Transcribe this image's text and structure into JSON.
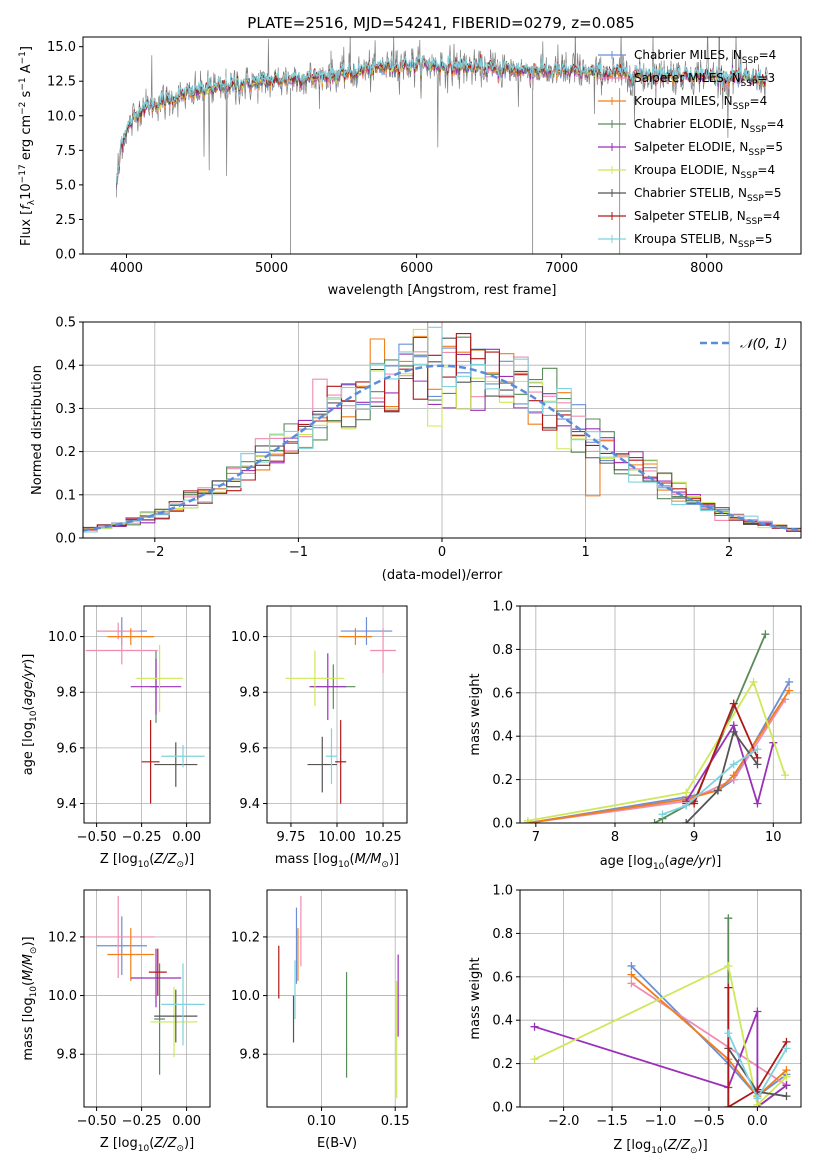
{
  "figure": {
    "title": "PLATE=2516, MJD=54241, FIBERID=0279, z=0.085"
  },
  "colors": {
    "Chabrier MILES": "#6b8fd6",
    "Salpeter MILES": "#f08cb0",
    "Kroupa MILES": "#f07f1a",
    "Chabrier ELODIE": "#5a8a5a",
    "Salpeter ELODIE": "#9b30b8",
    "Kroupa ELODIE": "#cfe85a",
    "Chabrier STELIB": "#555555",
    "Salpeter STELIB": "#b01818",
    "Kroupa STELIB": "#7fd3de",
    "data_grey": "#808080",
    "normal_curve": "#5b8cdb"
  },
  "chart_data": [
    {
      "id": "spectrum",
      "type": "line",
      "title": "PLATE=2516, MJD=54241, FIBERID=0279, z=0.085",
      "xlabel": "wavelength [Angstrom, rest frame]",
      "ylabel": "Flux [f$_\\lambda$10$^{-17}$ erg cm$^{-2}$ s$^{-1}$ A$^{-1}$]",
      "xlim": [
        3700,
        8650
      ],
      "ylim": [
        0,
        15.7
      ],
      "xticks": [
        4000,
        5000,
        6000,
        7000,
        8000
      ],
      "yticks": [
        0.0,
        2.5,
        5.0,
        7.5,
        10.0,
        12.5,
        15.0
      ],
      "ytick_labels": [
        "0.0",
        "2.5",
        "5.0",
        "7.5",
        "10.0",
        "12.5",
        "15.0"
      ],
      "grid": false,
      "legend_position": "right",
      "legend": [
        "Chabrier MILES, N$_{SSP}$=4",
        "Salpeter MILES, N$_{SSP}$=3",
        "Kroupa MILES, N$_{SSP}$=4",
        "Chabrier ELODIE, N$_{SSP}$=4",
        "Salpeter ELODIE, N$_{SSP}$=5",
        "Kroupa ELODIE, N$_{SSP}$=4",
        "Chabrier STELIB, N$_{SSP}$=5",
        "Salpeter STELIB, N$_{SSP}$=4",
        "Kroupa STELIB, N$_{SSP}$=5"
      ],
      "legend_labels": [
        [
          "Chabrier MILES, N",
          "SSP",
          "=4"
        ],
        [
          "Salpeter MILES, N",
          "SSP",
          "=3"
        ],
        [
          "Kroupa MILES, N",
          "SSP",
          "=4"
        ],
        [
          "Chabrier ELODIE, N",
          "SSP",
          "=4"
        ],
        [
          "Salpeter ELODIE, N",
          "SSP",
          "=5"
        ],
        [
          "Kroupa ELODIE, N",
          "SSP",
          "=4"
        ],
        [
          "Chabrier STELIB, N",
          "SSP",
          "=5"
        ],
        [
          "Salpeter STELIB, N",
          "SSP",
          "=4"
        ],
        [
          "Kroupa STELIB, N",
          "SSP",
          "=5"
        ]
      ],
      "continuum_shape": {
        "x": [
          3930,
          3950,
          4000,
          4100,
          4300,
          4500,
          4800,
          5000,
          5500,
          5800,
          6000,
          6500,
          7000,
          7500,
          8000,
          8400
        ],
        "y": [
          8.5,
          7.5,
          9.0,
          10.5,
          11.2,
          11.8,
          12.3,
          12.5,
          13.0,
          13.6,
          13.7,
          13.4,
          13.2,
          13.0,
          12.9,
          12.6
        ]
      },
      "spectrum_range": [
        3930,
        8420
      ]
    },
    {
      "id": "residuals",
      "type": "histogram",
      "xlabel": "(data-model)/error",
      "ylabel": "Normed distribution",
      "xlim": [
        -2.5,
        2.5
      ],
      "ylim": [
        0,
        0.5
      ],
      "xticks": [
        -2,
        -1,
        0,
        1,
        2
      ],
      "xtick_labels": [
        "−2",
        "−1",
        "0",
        "1",
        "2"
      ],
      "yticks": [
        0.0,
        0.1,
        0.2,
        0.3,
        0.4,
        0.5
      ],
      "ytick_labels": [
        "0.0",
        "0.1",
        "0.2",
        "0.3",
        "0.4",
        "0.5"
      ],
      "grid": true,
      "bin_width": 0.1,
      "legend_label": "$\\mathcal{N}(0, 1)$",
      "legend_position": "top-right"
    },
    {
      "id": "age_vs_Z",
      "type": "scatter",
      "xlabel": "Z [log$_{10}$(Z/Z$_\\odot$)]",
      "ylabel": "age  [log$_{10}$(age/yr)]",
      "xlim": [
        -0.57,
        0.13
      ],
      "ylim": [
        9.33,
        10.11
      ],
      "xticks": [
        -0.5,
        -0.25,
        0.0
      ],
      "xtick_labels": [
        "−0.50",
        "−0.25",
        "0.00"
      ],
      "yticks": [
        9.4,
        9.6,
        9.8,
        10.0
      ],
      "ytick_labels": [
        "9.4",
        "9.6",
        "9.8",
        "10.0"
      ],
      "grid": true,
      "points": [
        {
          "model": "Chabrier MILES",
          "x": -0.36,
          "xerr": 0.14,
          "y": 10.02,
          "yerr": 0.05
        },
        {
          "model": "Salpeter MILES",
          "x": -0.38,
          "xerr": 0.12,
          "y": 10.02,
          "yerr": 0.03
        },
        {
          "model": "Kroupa MILES",
          "x": -0.31,
          "xerr": 0.13,
          "y": 10.0,
          "yerr": 0.03
        },
        {
          "model": "Chabrier ELODIE",
          "x": -0.17,
          "xerr": 0.03,
          "y": 9.82,
          "yerr": 0.13
        },
        {
          "model": "Salpeter ELODIE",
          "x": -0.17,
          "xerr": 0.14,
          "y": 9.82,
          "yerr": 0.1
        },
        {
          "model": "Kroupa ELODIE",
          "x": -0.15,
          "xerr": 0.13,
          "y": 9.85,
          "yerr": 0.12
        },
        {
          "model": "Chabrier STELIB",
          "x": -0.06,
          "xerr": 0.12,
          "y": 9.54,
          "yerr": 0.08
        },
        {
          "model": "Salpeter STELIB",
          "x": -0.2,
          "xerr": 0.05,
          "y": 9.55,
          "yerr": 0.15
        },
        {
          "model": "Kroupa STELIB",
          "x": -0.02,
          "xerr": 0.12,
          "y": 9.57,
          "yerr": 0.04
        },
        {
          "model": "Salpeter MILES",
          "x": -0.36,
          "xerr": 0.2,
          "y": 9.95,
          "yerr": 0.05
        }
      ]
    },
    {
      "id": "age_vs_mass",
      "type": "scatter",
      "xlabel": "mass [log$_{10}$(M/M$_\\odot$)]",
      "ylabel": "",
      "xlim": [
        9.62,
        10.38
      ],
      "ylim": [
        9.33,
        10.11
      ],
      "xticks": [
        9.75,
        10.0,
        10.25
      ],
      "xtick_labels": [
        "9.75",
        "10.00",
        "10.25"
      ],
      "yticks": [
        9.4,
        9.6,
        9.8,
        10.0
      ],
      "ytick_labels": [
        "9.4",
        "9.6",
        "9.8",
        "10.0"
      ],
      "grid": true,
      "points": [
        {
          "model": "Chabrier MILES",
          "x": 10.16,
          "xerr": 0.14,
          "y": 10.02,
          "yerr": 0.05
        },
        {
          "model": "Salpeter MILES",
          "x": 10.25,
          "xerr": 0.07,
          "y": 9.95,
          "yerr": 0.08
        },
        {
          "model": "Kroupa MILES",
          "x": 10.1,
          "xerr": 0.09,
          "y": 10.0,
          "yerr": 0.03
        },
        {
          "model": "Chabrier ELODIE",
          "x": 9.98,
          "xerr": 0.12,
          "y": 9.82,
          "yerr": 0.08
        },
        {
          "model": "Salpeter ELODIE",
          "x": 9.95,
          "xerr": 0.1,
          "y": 9.82,
          "yerr": 0.12
        },
        {
          "model": "Kroupa ELODIE",
          "x": 9.88,
          "xerr": 0.16,
          "y": 9.85,
          "yerr": 0.1
        },
        {
          "model": "Chabrier STELIB",
          "x": 9.92,
          "xerr": 0.08,
          "y": 9.54,
          "yerr": 0.1
        },
        {
          "model": "Salpeter STELIB",
          "x": 10.02,
          "xerr": 0.03,
          "y": 9.55,
          "yerr": 0.15
        },
        {
          "model": "Kroupa STELIB",
          "x": 9.97,
          "xerr": 0.03,
          "y": 9.57,
          "yerr": 0.1
        }
      ]
    },
    {
      "id": "weight_vs_age",
      "type": "line",
      "xlabel": "age  [log$_{10}$(age/yr)]",
      "ylabel": "mass weight",
      "xlim": [
        6.8,
        10.35
      ],
      "ylim": [
        0,
        1.0
      ],
      "xticks": [
        7,
        8,
        9,
        10
      ],
      "xtick_labels": [
        "7",
        "8",
        "9",
        "10"
      ],
      "yticks": [
        0.0,
        0.2,
        0.4,
        0.6,
        0.8,
        1.0
      ],
      "ytick_labels": [
        "0.0",
        "0.2",
        "0.4",
        "0.6",
        "0.8",
        "1.0"
      ],
      "grid": true,
      "series": [
        {
          "model": "Chabrier MILES",
          "x": [
            6.9,
            8.9,
            9.3,
            9.5,
            10.2
          ],
          "y": [
            0.0,
            0.12,
            0.15,
            0.2,
            0.65
          ]
        },
        {
          "model": "Salpeter MILES",
          "x": [
            6.9,
            8.9,
            9.5,
            10.15
          ],
          "y": [
            0.0,
            0.1,
            0.2,
            0.57
          ]
        },
        {
          "model": "Kroupa MILES",
          "x": [
            6.9,
            8.9,
            9.3,
            9.5,
            10.2
          ],
          "y": [
            0.0,
            0.11,
            0.15,
            0.22,
            0.61
          ]
        },
        {
          "model": "Chabrier ELODIE",
          "x": [
            8.5,
            8.6,
            9.0,
            9.9
          ],
          "y": [
            0.0,
            0.02,
            0.1,
            0.87
          ]
        },
        {
          "model": "Salpeter ELODIE",
          "x": [
            8.9,
            9.5,
            9.8,
            10.0
          ],
          "y": [
            0.1,
            0.45,
            0.09,
            0.37
          ]
        },
        {
          "model": "Kroupa ELODIE",
          "x": [
            6.9,
            8.9,
            9.75,
            10.15
          ],
          "y": [
            0.01,
            0.14,
            0.65,
            0.22
          ]
        },
        {
          "model": "Chabrier STELIB",
          "x": [
            8.9,
            9.3,
            9.5,
            9.8
          ],
          "y": [
            0.0,
            0.15,
            0.42,
            0.27
          ]
        },
        {
          "model": "Salpeter STELIB",
          "x": [
            8.9,
            9.0,
            9.5,
            9.8
          ],
          "y": [
            0.09,
            0.09,
            0.55,
            0.3
          ]
        },
        {
          "model": "Kroupa STELIB",
          "x": [
            8.6,
            8.9,
            9.5,
            9.8
          ],
          "y": [
            0.04,
            0.08,
            0.27,
            0.34
          ]
        }
      ]
    },
    {
      "id": "mass_vs_Z",
      "type": "scatter",
      "xlabel": "Z [log$_{10}$(Z/Z$_\\odot$)]",
      "ylabel": "mass [log$_{10}$(M/M$_\\odot$)]",
      "xlim": [
        -0.57,
        0.13
      ],
      "ylim": [
        9.62,
        10.36
      ],
      "xticks": [
        -0.5,
        -0.25,
        0.0
      ],
      "xtick_labels": [
        "−0.50",
        "−0.25",
        "0.00"
      ],
      "yticks": [
        9.8,
        10.0,
        10.2
      ],
      "ytick_labels": [
        "9.8",
        "10.0",
        "10.2"
      ],
      "grid": true,
      "points": [
        {
          "model": "Chabrier MILES",
          "x": -0.36,
          "xerr": 0.14,
          "y": 10.17,
          "yerr": 0.1
        },
        {
          "model": "Salpeter MILES",
          "x": -0.38,
          "xerr": 0.2,
          "y": 10.2,
          "yerr": 0.14
        },
        {
          "model": "Kroupa MILES",
          "x": -0.31,
          "xerr": 0.13,
          "y": 10.14,
          "yerr": 0.09
        },
        {
          "model": "Chabrier ELODIE",
          "x": -0.15,
          "xerr": 0.03,
          "y": 9.92,
          "yerr": 0.19
        },
        {
          "model": "Salpeter ELODIE",
          "x": -0.17,
          "xerr": 0.14,
          "y": 10.06,
          "yerr": 0.1
        },
        {
          "model": "Kroupa ELODIE",
          "x": -0.07,
          "xerr": 0.13,
          "y": 9.91,
          "yerr": 0.12
        },
        {
          "model": "Chabrier STELIB",
          "x": -0.06,
          "xerr": 0.12,
          "y": 9.93,
          "yerr": 0.09
        },
        {
          "model": "Salpeter STELIB",
          "x": -0.16,
          "xerr": 0.05,
          "y": 10.08,
          "yerr": 0.08
        },
        {
          "model": "Kroupa STELIB",
          "x": -0.02,
          "xerr": 0.12,
          "y": 9.97,
          "yerr": 0.14
        }
      ]
    },
    {
      "id": "mass_vs_ebv",
      "type": "scatter",
      "xlabel": "E(B-V)",
      "ylabel": "",
      "xlim": [
        0.063,
        0.158
      ],
      "ylim": [
        9.62,
        10.36
      ],
      "xticks": [
        0.1,
        0.15
      ],
      "xtick_labels": [
        "0.10",
        "0.15"
      ],
      "yticks": [
        9.8,
        10.0,
        10.2
      ],
      "ytick_labels": [
        "9.8",
        "10.0",
        "10.2"
      ],
      "grid": true,
      "points": [
        {
          "model": "Chabrier MILES",
          "x": 0.083,
          "xerr": 0.0,
          "y": 10.17,
          "yerr": 0.13
        },
        {
          "model": "Salpeter MILES",
          "x": 0.086,
          "xerr": 0.0,
          "y": 10.22,
          "yerr": 0.12
        },
        {
          "model": "Kroupa MILES",
          "x": 0.084,
          "xerr": 0.0,
          "y": 10.14,
          "yerr": 0.09
        },
        {
          "model": "Chabrier ELODIE",
          "x": 0.117,
          "xerr": 0.0,
          "y": 9.9,
          "yerr": 0.18
        },
        {
          "model": "Salpeter ELODIE",
          "x": 0.152,
          "xerr": 0.0,
          "y": 10.0,
          "yerr": 0.14
        },
        {
          "model": "Kroupa ELODIE",
          "x": 0.151,
          "xerr": 0.0,
          "y": 9.85,
          "yerr": 0.2
        },
        {
          "model": "Chabrier STELIB",
          "x": 0.081,
          "xerr": 0.0,
          "y": 9.92,
          "yerr": 0.08
        },
        {
          "model": "Salpeter STELIB",
          "x": 0.071,
          "xerr": 0.0,
          "y": 10.08,
          "yerr": 0.09
        },
        {
          "model": "Kroupa STELIB",
          "x": 0.082,
          "xerr": 0.0,
          "y": 10.02,
          "yerr": 0.1
        }
      ]
    },
    {
      "id": "weight_vs_Z",
      "type": "line",
      "xlabel": "Z [log$_{10}$(Z/Z$_\\odot$)]",
      "ylabel": "mass weight",
      "xlim": [
        -2.45,
        0.45
      ],
      "ylim": [
        0,
        1.0
      ],
      "xticks": [
        -2.0,
        -1.5,
        -1.0,
        -0.5,
        0.0
      ],
      "xtick_labels": [
        "−2.0",
        "−1.5",
        "−1.0",
        "−0.5",
        "0.0"
      ],
      "yticks": [
        0.0,
        0.2,
        0.4,
        0.6,
        0.8,
        1.0
      ],
      "ytick_labels": [
        "0.0",
        "0.2",
        "0.4",
        "0.6",
        "0.8",
        "1.0"
      ],
      "grid": true,
      "series": [
        {
          "model": "Chabrier MILES",
          "x": [
            -1.3,
            -0.3,
            0.0,
            0.3
          ],
          "y": [
            0.65,
            0.2,
            0.05,
            0.15
          ]
        },
        {
          "model": "Salpeter MILES",
          "x": [
            -1.3,
            0.3
          ],
          "y": [
            0.57,
            0.1
          ]
        },
        {
          "model": "Kroupa MILES",
          "x": [
            -1.3,
            -0.3,
            0.0,
            0.3
          ],
          "y": [
            0.61,
            0.22,
            0.05,
            0.17
          ]
        },
        {
          "model": "Chabrier ELODIE",
          "x": [
            -0.3,
            -0.3,
            0.0,
            0.3
          ],
          "y": [
            0.87,
            0.0,
            0.0,
            0.1
          ]
        },
        {
          "model": "Salpeter ELODIE",
          "x": [
            -2.3,
            -0.3,
            0.0,
            0.0,
            0.3
          ],
          "y": [
            0.37,
            0.09,
            0.44,
            0.0,
            0.1
          ]
        },
        {
          "model": "Kroupa ELODIE",
          "x": [
            -2.3,
            -0.3,
            0.0,
            0.3
          ],
          "y": [
            0.22,
            0.65,
            0.01,
            0.14
          ]
        },
        {
          "model": "Chabrier STELIB",
          "x": [
            -0.3,
            0.0,
            0.3
          ],
          "y": [
            0.27,
            0.07,
            0.05
          ]
        },
        {
          "model": "Salpeter STELIB",
          "x": [
            -0.3,
            -0.3,
            0.0,
            0.3
          ],
          "y": [
            0.55,
            0.0,
            0.08,
            0.3
          ]
        },
        {
          "model": "Kroupa STELIB",
          "x": [
            -0.3,
            0.0,
            0.3
          ],
          "y": [
            0.34,
            0.04,
            0.27
          ]
        }
      ]
    }
  ]
}
